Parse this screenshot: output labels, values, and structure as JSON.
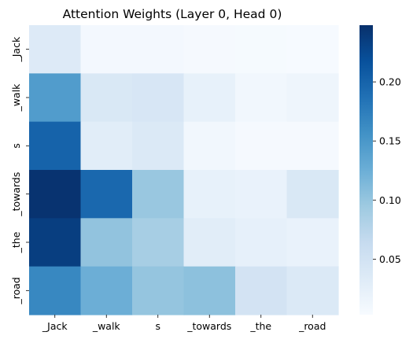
{
  "chart_data": {
    "type": "heatmap",
    "title": "Attention Weights (Layer 0, Head 0)",
    "xlabel": "",
    "ylabel": "",
    "x_labels": [
      "_Jack",
      "_walk",
      "s",
      "_towards",
      "_the",
      "_road"
    ],
    "y_labels": [
      "_Jack",
      "_walk",
      "s",
      "_towards",
      "_the",
      "_road"
    ],
    "values": [
      [
        0.035,
        0.008,
        0.008,
        0.006,
        0.005,
        0.004
      ],
      [
        0.145,
        0.04,
        0.043,
        0.022,
        0.01,
        0.014
      ],
      [
        0.2,
        0.03,
        0.037,
        0.01,
        0.006,
        0.006
      ],
      [
        0.245,
        0.195,
        0.098,
        0.022,
        0.02,
        0.04
      ],
      [
        0.235,
        0.102,
        0.088,
        0.03,
        0.024,
        0.02
      ],
      [
        0.165,
        0.125,
        0.1,
        0.105,
        0.048,
        0.037
      ]
    ],
    "colormap": "Blues",
    "vmin": 0.003,
    "vmax": 0.248,
    "colorbar_ticks": [
      0.05,
      0.1,
      0.15,
      0.2
    ],
    "colorbar_tick_labels": [
      "0.05",
      "0.10",
      "0.15",
      "0.20"
    ]
  }
}
